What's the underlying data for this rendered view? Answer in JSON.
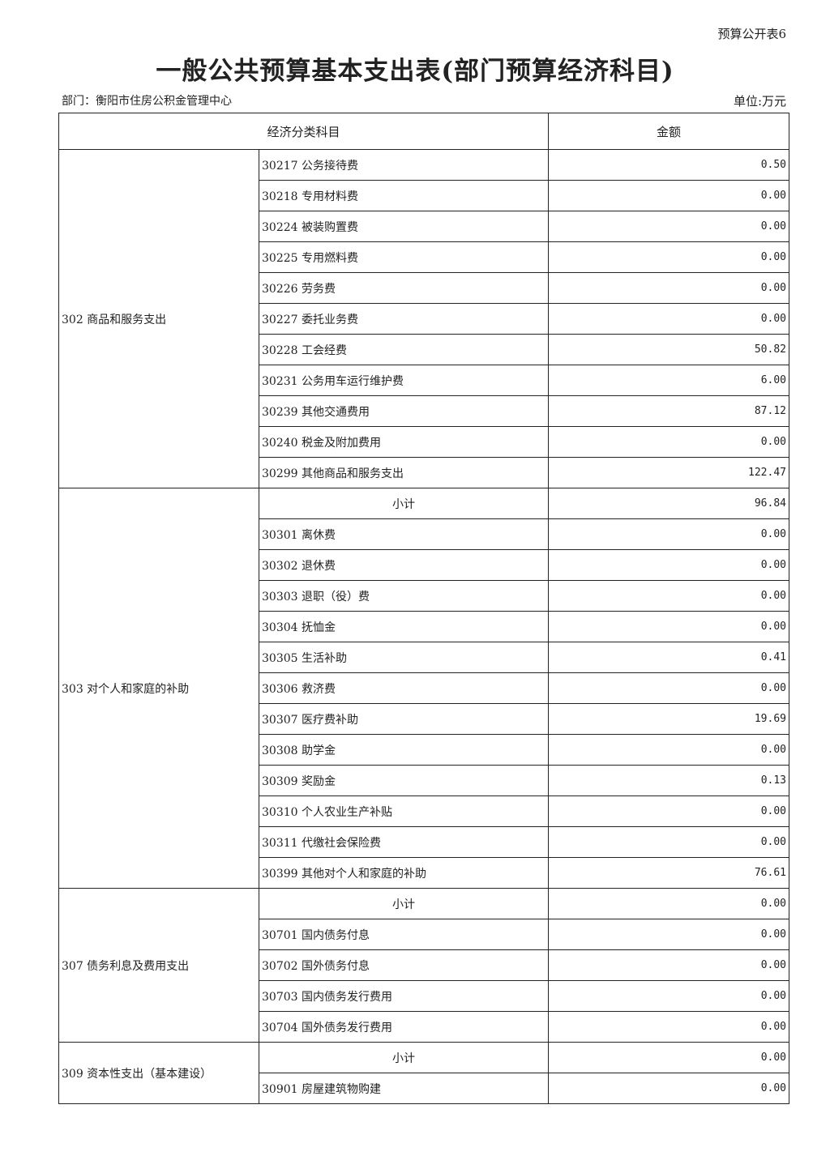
{
  "doc": {
    "tag": "预算公开表6",
    "title": "一般公共预算基本支出表(部门预算经济科目)",
    "department": "部门：衡阳市住房公积金管理中心",
    "unit": "单位:万元"
  },
  "table": {
    "headers": [
      "经济分类科目",
      "金额"
    ],
    "groups": [
      {
        "name": "302 商品和服务支出",
        "rows": [
          {
            "item": "30217 公务接待费",
            "amount": "0.50"
          },
          {
            "item": "30218 专用材料费",
            "amount": "0.00"
          },
          {
            "item": "30224 被装购置费",
            "amount": "0.00"
          },
          {
            "item": "30225 专用燃料费",
            "amount": "0.00"
          },
          {
            "item": "30226 劳务费",
            "amount": "0.00"
          },
          {
            "item": "30227 委托业务费",
            "amount": "0.00"
          },
          {
            "item": "30228 工会经费",
            "amount": "50.82"
          },
          {
            "item": "30231 公务用车运行维护费",
            "amount": "6.00"
          },
          {
            "item": "30239 其他交通费用",
            "amount": "87.12"
          },
          {
            "item": "30240 税金及附加费用",
            "amount": "0.00"
          },
          {
            "item": "30299 其他商品和服务支出",
            "amount": "122.47"
          }
        ]
      },
      {
        "name": "303 对个人和家庭的补助",
        "rows": [
          {
            "item": "小计",
            "amount": "96.84",
            "subtotal": true
          },
          {
            "item": "30301 离休费",
            "amount": "0.00"
          },
          {
            "item": "30302 退休费",
            "amount": "0.00"
          },
          {
            "item": "30303 退职（役）费",
            "amount": "0.00"
          },
          {
            "item": "30304 抚恤金",
            "amount": "0.00"
          },
          {
            "item": "30305 生活补助",
            "amount": "0.41"
          },
          {
            "item": "30306 救济费",
            "amount": "0.00"
          },
          {
            "item": "30307 医疗费补助",
            "amount": "19.69"
          },
          {
            "item": "30308 助学金",
            "amount": "0.00"
          },
          {
            "item": "30309 奖励金",
            "amount": "0.13"
          },
          {
            "item": "30310 个人农业生产补贴",
            "amount": "0.00"
          },
          {
            "item": "30311 代缴社会保险费",
            "amount": "0.00"
          },
          {
            "item": "30399 其他对个人和家庭的补助",
            "amount": "76.61"
          }
        ]
      },
      {
        "name": "307 债务利息及费用支出",
        "rows": [
          {
            "item": "小计",
            "amount": "0.00",
            "subtotal": true
          },
          {
            "item": "30701 国内债务付息",
            "amount": "0.00"
          },
          {
            "item": "30702 国外债务付息",
            "amount": "0.00"
          },
          {
            "item": "30703 国内债务发行费用",
            "amount": "0.00"
          },
          {
            "item": "30704 国外债务发行费用",
            "amount": "0.00"
          }
        ]
      },
      {
        "name": "309 资本性支出（基本建设）",
        "rows": [
          {
            "item": "小计",
            "amount": "0.00",
            "subtotal": true
          },
          {
            "item": "30901 房屋建筑物购建",
            "amount": "0.00"
          }
        ]
      }
    ]
  }
}
